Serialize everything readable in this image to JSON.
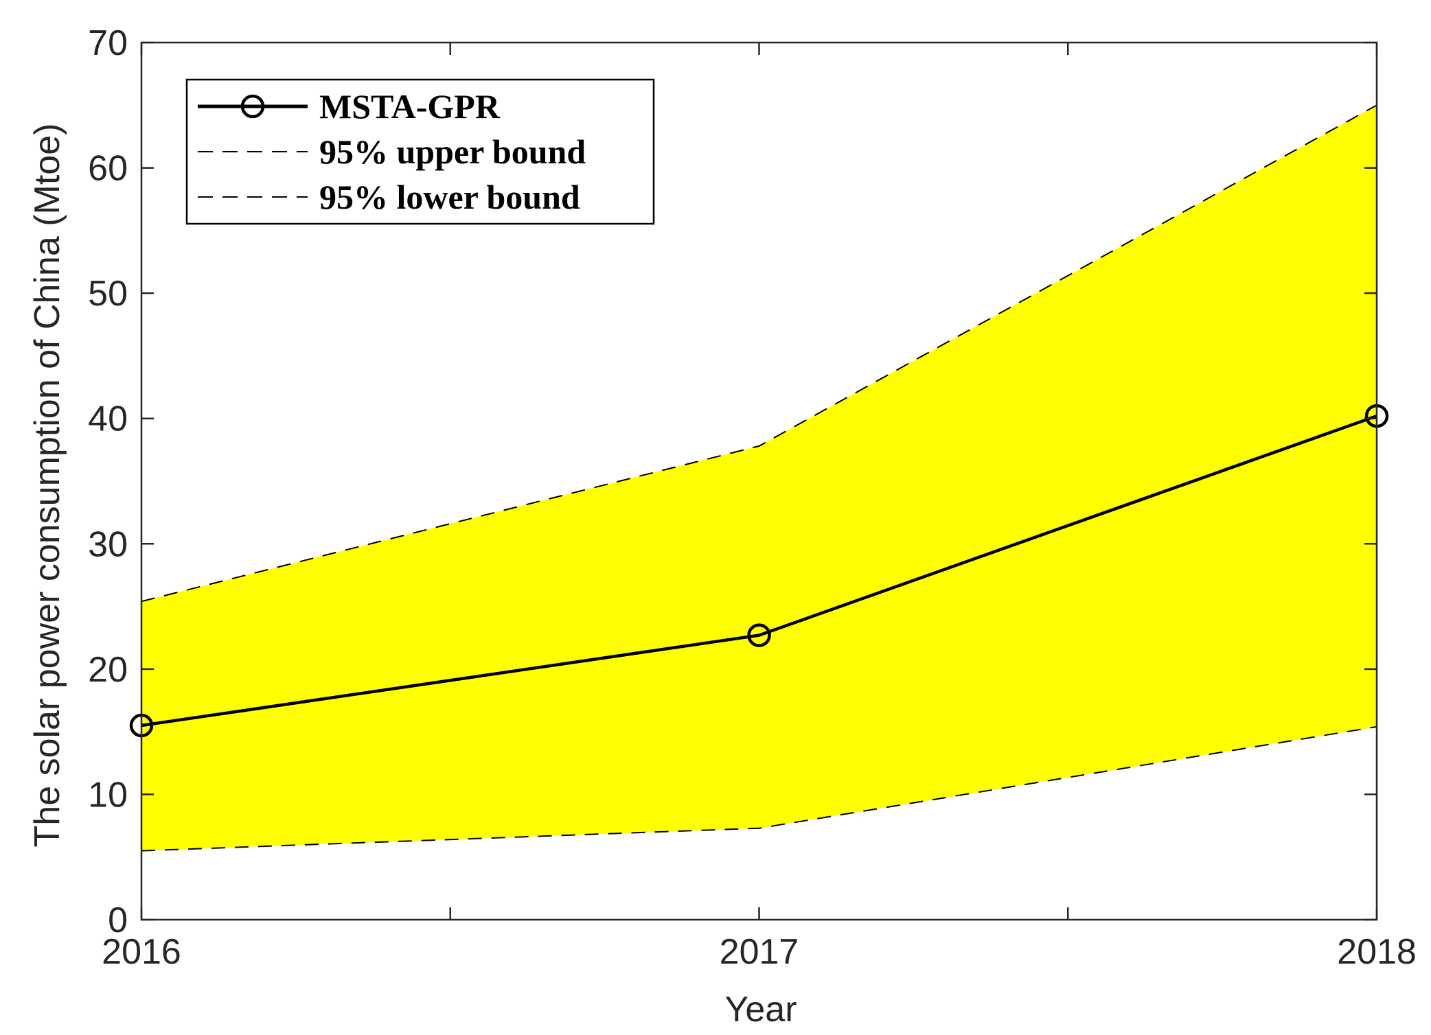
{
  "chart_data": {
    "type": "line",
    "title": "",
    "xlabel": "Year",
    "ylabel": "The solar power consumption of China (Mtoe)",
    "x": [
      2016,
      2017,
      2018
    ],
    "x_tick_labels": [
      "2016",
      "2017",
      "2018"
    ],
    "xlim": [
      2016,
      2018
    ],
    "x_minor_ticks": [
      2016.5,
      2017.5
    ],
    "ylim": [
      0,
      70
    ],
    "y_ticks": [
      0,
      10,
      20,
      30,
      40,
      50,
      60,
      70
    ],
    "y_tick_labels": [
      "0",
      "10",
      "20",
      "30",
      "40",
      "50",
      "60",
      "70"
    ],
    "grid": false,
    "legend_position": "top-left",
    "band_color": "#ffff00",
    "series": [
      {
        "name": "MSTA-GPR",
        "values": [
          15.5,
          22.7,
          40.2
        ],
        "style": "solid",
        "marker": "circle",
        "color": "#000000"
      },
      {
        "name": "95% upper bound",
        "values": [
          25.4,
          37.8,
          65.0
        ],
        "style": "dashed",
        "color": "#000000"
      },
      {
        "name": "95% lower bound",
        "values": [
          5.5,
          7.3,
          15.4
        ],
        "style": "dashed",
        "color": "#000000"
      }
    ]
  }
}
